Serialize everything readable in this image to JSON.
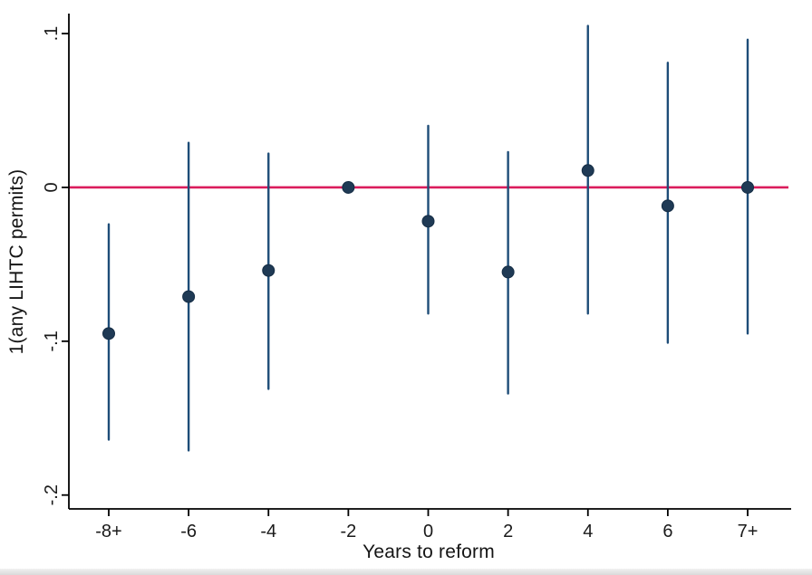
{
  "page": {
    "background": "#ffffff",
    "footer_strip_color": "#d9d9d9"
  },
  "chart_data": {
    "type": "scatter",
    "subtype": "event-study-coefficients-with-95ci",
    "title": "",
    "xlabel": "Years to reform",
    "ylabel": "1(any LIHTC permits)",
    "categories": [
      "-8+",
      "-6",
      "-4",
      "-2",
      "0",
      "2",
      "4",
      "6",
      "7+"
    ],
    "series": [
      {
        "name": "coefficient",
        "values": [
          -0.095,
          -0.071,
          -0.054,
          0.0,
          -0.022,
          -0.055,
          0.011,
          -0.012,
          0.0
        ],
        "ci_low": [
          -0.164,
          -0.171,
          -0.131,
          null,
          -0.082,
          -0.134,
          -0.082,
          -0.101,
          -0.095
        ],
        "ci_high": [
          -0.024,
          0.029,
          0.022,
          null,
          0.04,
          0.023,
          0.105,
          0.081,
          0.096
        ]
      }
    ],
    "ref_line_y": 0,
    "yticks": [
      0.1,
      0,
      -0.1,
      -0.2
    ],
    "ytick_labels": [
      ".1",
      "0",
      "-.1",
      "-.2"
    ],
    "ylim": [
      -0.209,
      0.113
    ],
    "grid": false,
    "legend": "none",
    "colors": {
      "ci_line": "#1e4d78",
      "marker": "#1f3a55",
      "marker_edge": "#142c44",
      "ref_line": "#da1c5c",
      "axis": "#000000",
      "text": "#1a1a1a"
    }
  }
}
